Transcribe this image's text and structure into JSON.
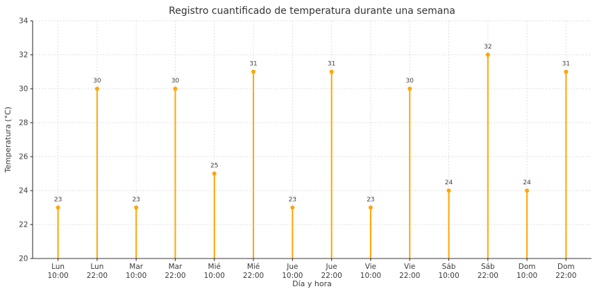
{
  "chart_data": {
    "type": "stem",
    "title": "Registro cuantificado de temperatura durante una semana",
    "xlabel": "Día y hora",
    "ylabel": "Temperatura (°C)",
    "x_tick_labels": [
      [
        "Lun",
        "10:00"
      ],
      [
        "Lun",
        "22:00"
      ],
      [
        "Mar",
        "10:00"
      ],
      [
        "Mar",
        "22:00"
      ],
      [
        "Mié",
        "10:00"
      ],
      [
        "Mié",
        "22:00"
      ],
      [
        "Jue",
        "10:00"
      ],
      [
        "Jue",
        "22:00"
      ],
      [
        "Vie",
        "10:00"
      ],
      [
        "Vie",
        "22:00"
      ],
      [
        "Sáb",
        "10:00"
      ],
      [
        "Sáb",
        "22:00"
      ],
      [
        "Dom",
        "10:00"
      ],
      [
        "Dom",
        "22:00"
      ]
    ],
    "values": [
      23,
      30,
      23,
      30,
      25,
      31,
      23,
      31,
      23,
      30,
      24,
      32,
      24,
      31
    ],
    "ylim": [
      20,
      34
    ],
    "yticks": [
      20,
      22,
      24,
      26,
      28,
      30,
      32,
      34
    ],
    "baseline": 20,
    "grid": true,
    "legend_position": "none",
    "colors": {
      "stem": "#FFA500",
      "marker": "#FFA500",
      "grid": "#dcdcdc",
      "axis": "#343434",
      "tick_text": "#3a3a3a",
      "title_text": "#333333",
      "annotation_text": "#404040",
      "background": "#ffffff"
    }
  }
}
